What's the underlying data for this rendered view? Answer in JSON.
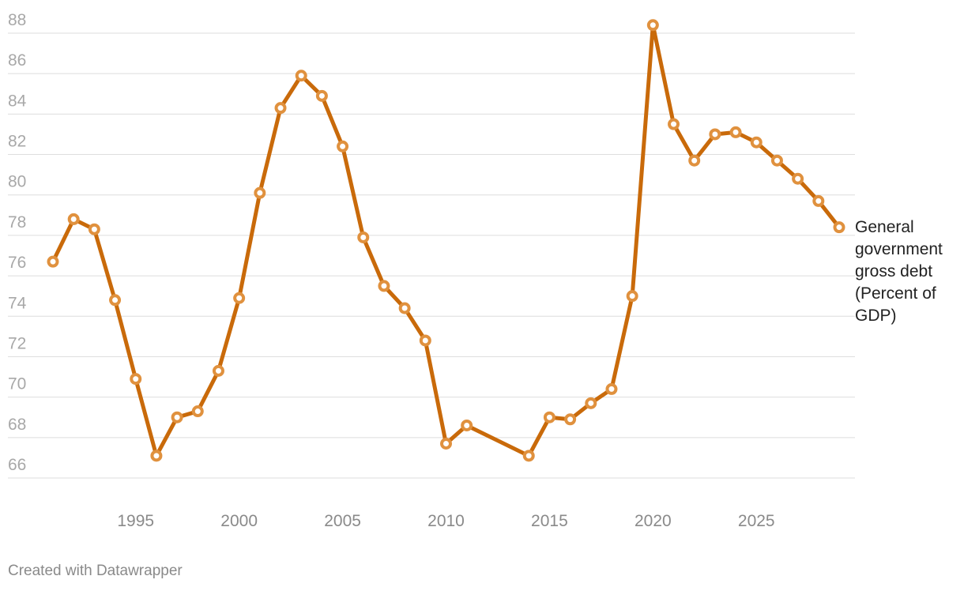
{
  "chart_data": {
    "type": "line",
    "x": [
      1991,
      1992,
      1993,
      1994,
      1995,
      1996,
      1997,
      1998,
      1999,
      2000,
      2001,
      2002,
      2003,
      2004,
      2005,
      2006,
      2007,
      2008,
      2009,
      2010,
      2011,
      2014,
      2015,
      2016,
      2017,
      2018,
      2019,
      2020,
      2021,
      2022,
      2023,
      2024,
      2025,
      2026,
      2027,
      2028,
      2029
    ],
    "series": [
      {
        "name": "General government gross debt (Percent of GDP)",
        "color": "#c96a0a",
        "values": [
          76.7,
          78.8,
          78.3,
          74.8,
          70.9,
          67.1,
          69.0,
          69.3,
          71.3,
          74.9,
          80.1,
          84.3,
          85.9,
          84.9,
          82.4,
          77.9,
          75.5,
          74.4,
          72.8,
          67.7,
          68.6,
          67.1,
          69.0,
          68.9,
          69.7,
          70.4,
          75.0,
          88.4,
          83.5,
          81.7,
          83.0,
          83.1,
          82.6,
          81.7,
          80.8,
          79.7,
          78.4
        ]
      }
    ],
    "xlim": [
      1991,
      2029
    ],
    "xticks": [
      1995,
      2000,
      2005,
      2010,
      2015,
      2020,
      2025
    ],
    "ylim": [
      66,
      88
    ],
    "yticks": [
      66,
      68,
      70,
      72,
      74,
      76,
      78,
      80,
      82,
      84,
      86,
      88
    ],
    "grid": true,
    "credit": "Created with Datawrapper"
  }
}
